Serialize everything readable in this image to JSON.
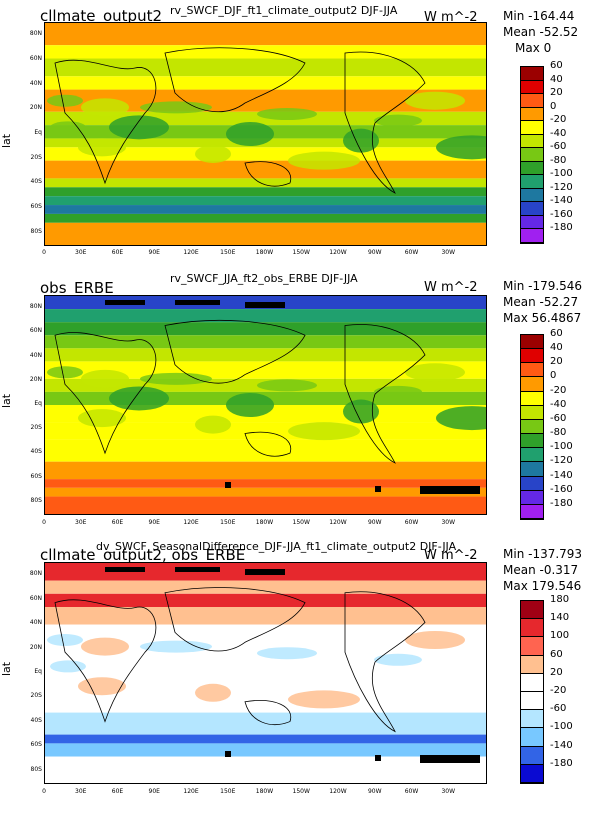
{
  "panels": [
    {
      "title": "cllmate_output2",
      "subtitle": "rv_SWCF_DJF_ft1_climate_output2  DJF-JJA",
      "units": "W m^-2",
      "stats": [
        "Min -164.44",
        "Mean -52.52",
        "Max 0"
      ],
      "ylabel": "lat",
      "colorbar_labels": [
        "60",
        "40",
        "20",
        "0",
        "-20",
        "-40",
        "-60",
        "-80",
        "-100",
        "-120",
        "-140",
        "-160",
        "-180"
      ],
      "colorbar_colors": [
        "#9b0000",
        "#e00000",
        "#ff5a14",
        "#ff9a00",
        "#ffff00",
        "#c3e600",
        "#78c814",
        "#2fa02a",
        "#20a06e",
        "#1e78a0",
        "#2844c8",
        "#6428e6",
        "#a020f0"
      ]
    },
    {
      "title": "obs_ERBE",
      "subtitle": "rv_SWCF_JJA_ft2_obs_ERBE  DJF-JJA",
      "units": "W m^-2",
      "stats": [
        "Min -179.546",
        "Mean -52.27",
        "Max 56.4867"
      ],
      "ylabel": "lat",
      "colorbar_labels": [
        "60",
        "40",
        "20",
        "0",
        "-20",
        "-40",
        "-60",
        "-80",
        "-100",
        "-120",
        "-140",
        "-160",
        "-180"
      ],
      "colorbar_colors": [
        "#9b0000",
        "#e00000",
        "#ff5a14",
        "#ff9a00",
        "#ffff00",
        "#c3e600",
        "#78c814",
        "#2fa02a",
        "#20a06e",
        "#1e78a0",
        "#2844c8",
        "#6428e6",
        "#a020f0"
      ]
    },
    {
      "title": "cllmate_output2, obs_ERBE",
      "subtitle": "dv_SWCF_SeasonalDifference_DJF-JJA_ft1_climate_output2  DJF-JJA",
      "units": "W m^-2",
      "stats": [
        "Min -137.793",
        "Mean -0.317",
        "Max 179.546"
      ],
      "ylabel": "lat",
      "colorbar_labels": [
        "180",
        "140",
        "100",
        "60",
        "20",
        "-20",
        "-60",
        "-100",
        "-140",
        "-180"
      ],
      "colorbar_colors": [
        "#a00014",
        "#e6282d",
        "#ff6450",
        "#ffc090",
        "#ffffff",
        "#ffffff",
        "#b4e6ff",
        "#78c8ff",
        "#3264e6",
        "#0a0ad2"
      ]
    }
  ],
  "axes": {
    "lat_ticks": [
      "80N",
      "60N",
      "40N",
      "20N",
      "Eq",
      "20S",
      "40S",
      "60S",
      "80S"
    ],
    "lon_ticks": [
      "0",
      "30E",
      "60E",
      "90E",
      "120E",
      "150E",
      "180W",
      "150W",
      "120W",
      "90W",
      "60W",
      "30W"
    ]
  },
  "chart_data": [
    {
      "type": "heatmap",
      "title": "cllmate_output2",
      "subtitle": "rv_SWCF_DJF_ft1_climate_output2  DJF-JJA",
      "units": "W m^-2",
      "ylabel": "lat",
      "stats": {
        "min": -164.44,
        "mean": -52.52,
        "max": 0
      },
      "levels": [
        60,
        40,
        20,
        0,
        -20,
        -40,
        -60,
        -80,
        -100,
        -120,
        -140,
        -160,
        -180
      ],
      "xlim": [
        0,
        360
      ],
      "ylim": [
        -90,
        90
      ]
    },
    {
      "type": "heatmap",
      "title": "obs_ERBE",
      "subtitle": "rv_SWCF_JJA_ft2_obs_ERBE  DJF-JJA",
      "units": "W m^-2",
      "ylabel": "lat",
      "stats": {
        "min": -179.546,
        "mean": -52.27,
        "max": 56.4867
      },
      "levels": [
        60,
        40,
        20,
        0,
        -20,
        -40,
        -60,
        -80,
        -100,
        -120,
        -140,
        -160,
        -180
      ],
      "xlim": [
        0,
        360
      ],
      "ylim": [
        -90,
        90
      ]
    },
    {
      "type": "heatmap",
      "title": "cllmate_output2, obs_ERBE",
      "subtitle": "dv_SWCF_SeasonalDifference_DJF-JJA_ft1_climate_output2  DJF-JJA",
      "units": "W m^-2",
      "ylabel": "lat",
      "stats": {
        "min": -137.793,
        "mean": -0.317,
        "max": 179.546
      },
      "levels": [
        180,
        140,
        100,
        60,
        20,
        -20,
        -60,
        -100,
        -140,
        -180
      ],
      "xlim": [
        0,
        360
      ],
      "ylim": [
        -90,
        90
      ]
    }
  ]
}
